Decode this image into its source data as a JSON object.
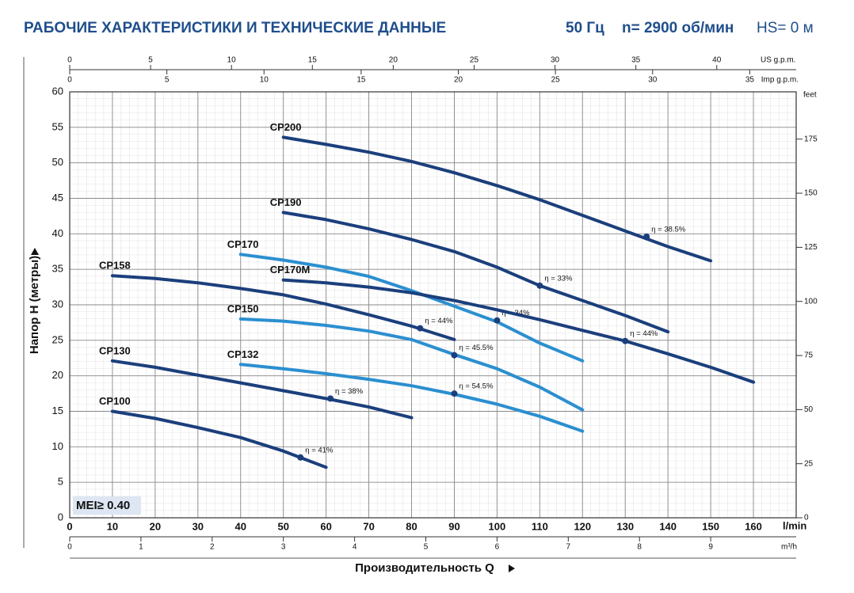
{
  "chart_data": {
    "type": "line",
    "title": "РАБОЧИЕ ХАРАКТЕРИСТИКИ И ТЕХНИЧЕСКИЕ ДАННЫЕ",
    "frequency": "50 Гц",
    "speed": "n= 2900 об/мин",
    "suction_head": "HS= 0 м",
    "ylabel": "Напор H (метры)",
    "xlabel": "Производительность Q",
    "xunit": "l/min",
    "badge": "MEI≥ 0.40",
    "grid": true,
    "xlim": [
      0,
      170
    ],
    "xticks": [
      0,
      10,
      20,
      30,
      40,
      50,
      60,
      70,
      80,
      90,
      100,
      110,
      120,
      130,
      140,
      150,
      160
    ],
    "ylim": [
      0,
      60
    ],
    "yticks": [
      0,
      5,
      10,
      15,
      20,
      25,
      30,
      35,
      40,
      45,
      50,
      55,
      60
    ],
    "y2label": "feet",
    "y2lim": [
      0,
      196.85
    ],
    "y2ticks": [
      0,
      25,
      50,
      75,
      100,
      125,
      150,
      175
    ],
    "top_axes": [
      {
        "unit": "US g.p.m.",
        "lim": [
          0,
          44.91
        ],
        "ticks": [
          0,
          5,
          10,
          15,
          20,
          25,
          30,
          35,
          40
        ]
      },
      {
        "unit": "Imp g.p.m.",
        "lim": [
          0,
          37.39
        ],
        "ticks": [
          0,
          5,
          10,
          15,
          20,
          25,
          30,
          35
        ]
      }
    ],
    "bottom_axis": {
      "unit": "m³/h",
      "lim": [
        0,
        10.2
      ],
      "ticks": [
        0,
        1,
        2,
        3,
        4,
        5,
        6,
        7,
        8,
        9
      ]
    },
    "series": [
      {
        "name": "CP200",
        "color": "#1b3f7c",
        "x": [
          50,
          60,
          70,
          80,
          90,
          100,
          110,
          120,
          130,
          140,
          150
        ],
        "values": [
          53.6,
          52.6,
          51.5,
          50.2,
          48.6,
          46.8,
          44.8,
          42.6,
          40.4,
          38.2,
          36.2
        ],
        "eff": {
          "x": 135,
          "y": 39.6,
          "label": "η = 38.5%"
        }
      },
      {
        "name": "CP190",
        "color": "#1b3f7c",
        "x": [
          50,
          60,
          70,
          80,
          90,
          100,
          110,
          120,
          130,
          140
        ],
        "values": [
          43,
          42,
          40.7,
          39.2,
          37.5,
          35.3,
          32.7,
          30.6,
          28.5,
          26.2
        ],
        "eff": {
          "x": 110,
          "y": 32.7,
          "label": "η = 33%"
        }
      },
      {
        "name": "CP170",
        "color": "#2b8fd0",
        "x": [
          40,
          50,
          60,
          70,
          80,
          90,
          100,
          110,
          120
        ],
        "values": [
          37.1,
          36.3,
          35.3,
          34.0,
          32.0,
          29.8,
          27.6,
          24.6,
          22.1
        ],
        "eff": {
          "x": 100,
          "y": 27.8,
          "label": "η = 34%"
        }
      },
      {
        "name": "CP170M",
        "color": "#1b3f7c",
        "x": [
          50,
          60,
          70,
          80,
          90,
          100,
          110,
          120,
          130,
          140,
          150,
          160
        ],
        "values": [
          33.5,
          33.1,
          32.5,
          31.7,
          30.6,
          29.3,
          27.9,
          26.4,
          24.9,
          23.1,
          21.2,
          19.1
        ],
        "eff": {
          "x": 130,
          "y": 24.9,
          "label": "η = 44%"
        }
      },
      {
        "name": "CP158",
        "color": "#1b3f7c",
        "x": [
          10,
          20,
          30,
          40,
          50,
          60,
          70,
          80,
          90
        ],
        "values": [
          34.1,
          33.7,
          33.1,
          32.3,
          31.4,
          30.1,
          28.6,
          27.0,
          25.1
        ],
        "eff": {
          "x": 82,
          "y": 26.7,
          "label": "η = 44%"
        }
      },
      {
        "name": "CP150",
        "color": "#2b8fd0",
        "x": [
          40,
          50,
          60,
          70,
          80,
          90,
          100,
          110,
          120
        ],
        "values": [
          28.0,
          27.7,
          27.1,
          26.3,
          25.1,
          23.0,
          21.0,
          18.4,
          15.2
        ],
        "eff": {
          "x": 90,
          "y": 22.9,
          "label": "η = 45.5%"
        }
      },
      {
        "name": "CP132",
        "color": "#2b8fd0",
        "x": [
          40,
          50,
          60,
          70,
          80,
          90,
          100,
          110,
          120
        ],
        "values": [
          21.6,
          21.0,
          20.3,
          19.5,
          18.6,
          17.4,
          16.0,
          14.3,
          12.2
        ],
        "eff": {
          "x": 90,
          "y": 17.5,
          "label": "η = 54.5%"
        }
      },
      {
        "name": "CP130",
        "color": "#1b3f7c",
        "x": [
          10,
          20,
          30,
          40,
          50,
          60,
          70,
          80
        ],
        "values": [
          22.1,
          21.2,
          20.1,
          19.0,
          17.9,
          16.8,
          15.6,
          14.1
        ],
        "eff": {
          "x": 61,
          "y": 16.8,
          "label": "η = 38%"
        }
      },
      {
        "name": "CP100",
        "color": "#1b3f7c",
        "x": [
          10,
          20,
          30,
          40,
          50,
          60
        ],
        "values": [
          15.0,
          14.0,
          12.7,
          11.3,
          9.4,
          7.1
        ],
        "eff": {
          "x": 54,
          "y": 8.5,
          "label": "η = 41%"
        }
      }
    ]
  }
}
